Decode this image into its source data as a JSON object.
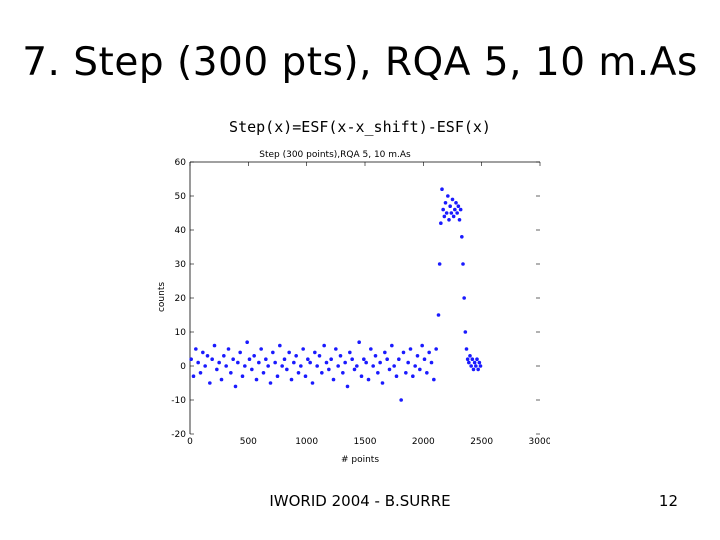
{
  "slide": {
    "title": "7. Step (300 pts), RQA 5, 10 m.As",
    "formula": "Step(x)=ESF(x-x_shift)-ESF(x)",
    "footer": "IWORID 2004 - B.SURRE",
    "page_number": "12"
  },
  "chart_data": {
    "type": "scatter",
    "title": "Step (300 points),RQA 5, 10 m.As",
    "xlabel": "# points",
    "ylabel": "counts",
    "xlim": [
      0,
      3000
    ],
    "ylim": [
      -20,
      60
    ],
    "xticks": [
      0,
      500,
      1000,
      1500,
      2000,
      2500,
      3000
    ],
    "yticks": [
      -20,
      -10,
      0,
      10,
      20,
      30,
      40,
      50,
      60
    ],
    "grid": false,
    "marker_color": "#1a1aff",
    "series": [
      {
        "points": [
          [
            10,
            2
          ],
          [
            30,
            -3
          ],
          [
            50,
            5
          ],
          [
            70,
            1
          ],
          [
            90,
            -2
          ],
          [
            110,
            4
          ],
          [
            130,
            0
          ],
          [
            150,
            3
          ],
          [
            170,
            -5
          ],
          [
            190,
            2
          ],
          [
            210,
            6
          ],
          [
            230,
            -1
          ],
          [
            250,
            1
          ],
          [
            270,
            -4
          ],
          [
            290,
            3
          ],
          [
            310,
            0
          ],
          [
            330,
            5
          ],
          [
            350,
            -2
          ],
          [
            370,
            2
          ],
          [
            390,
            -6
          ],
          [
            410,
            1
          ],
          [
            430,
            4
          ],
          [
            450,
            -3
          ],
          [
            470,
            0
          ],
          [
            490,
            7
          ],
          [
            510,
            2
          ],
          [
            530,
            -1
          ],
          [
            550,
            3
          ],
          [
            570,
            -4
          ],
          [
            590,
            1
          ],
          [
            610,
            5
          ],
          [
            630,
            -2
          ],
          [
            650,
            2
          ],
          [
            670,
            0
          ],
          [
            690,
            -5
          ],
          [
            710,
            4
          ],
          [
            730,
            1
          ],
          [
            750,
            -3
          ],
          [
            770,
            6
          ],
          [
            790,
            0
          ],
          [
            810,
            2
          ],
          [
            830,
            -1
          ],
          [
            850,
            4
          ],
          [
            870,
            -4
          ],
          [
            890,
            1
          ],
          [
            910,
            3
          ],
          [
            930,
            -2
          ],
          [
            950,
            0
          ],
          [
            970,
            5
          ],
          [
            990,
            -3
          ],
          [
            1010,
            2
          ],
          [
            1030,
            1
          ],
          [
            1050,
            -5
          ],
          [
            1070,
            4
          ],
          [
            1090,
            0
          ],
          [
            1110,
            3
          ],
          [
            1130,
            -2
          ],
          [
            1150,
            6
          ],
          [
            1170,
            1
          ],
          [
            1190,
            -1
          ],
          [
            1210,
            2
          ],
          [
            1230,
            -4
          ],
          [
            1250,
            5
          ],
          [
            1270,
            0
          ],
          [
            1290,
            3
          ],
          [
            1310,
            -2
          ],
          [
            1330,
            1
          ],
          [
            1350,
            -6
          ],
          [
            1370,
            4
          ],
          [
            1390,
            2
          ],
          [
            1410,
            -1
          ],
          [
            1430,
            0
          ],
          [
            1450,
            7
          ],
          [
            1470,
            -3
          ],
          [
            1490,
            2
          ],
          [
            1510,
            1
          ],
          [
            1530,
            -4
          ],
          [
            1550,
            5
          ],
          [
            1570,
            0
          ],
          [
            1590,
            3
          ],
          [
            1610,
            -2
          ],
          [
            1630,
            1
          ],
          [
            1650,
            -5
          ],
          [
            1670,
            4
          ],
          [
            1690,
            2
          ],
          [
            1710,
            -1
          ],
          [
            1730,
            6
          ],
          [
            1750,
            0
          ],
          [
            1770,
            -3
          ],
          [
            1790,
            2
          ],
          [
            1810,
            -10
          ],
          [
            1830,
            4
          ],
          [
            1850,
            -2
          ],
          [
            1870,
            1
          ],
          [
            1890,
            5
          ],
          [
            1910,
            -3
          ],
          [
            1930,
            0
          ],
          [
            1950,
            3
          ],
          [
            1970,
            -1
          ],
          [
            1990,
            6
          ],
          [
            2010,
            2
          ],
          [
            2030,
            -2
          ],
          [
            2050,
            4
          ],
          [
            2070,
            1
          ],
          [
            2090,
            -4
          ],
          [
            2110,
            5
          ],
          [
            2130,
            15
          ],
          [
            2140,
            30
          ],
          [
            2150,
            42
          ],
          [
            2160,
            52
          ],
          [
            2170,
            46
          ],
          [
            2180,
            44
          ],
          [
            2190,
            48
          ],
          [
            2200,
            45
          ],
          [
            2210,
            50
          ],
          [
            2220,
            43
          ],
          [
            2230,
            47
          ],
          [
            2240,
            45
          ],
          [
            2250,
            49
          ],
          [
            2260,
            44
          ],
          [
            2270,
            46
          ],
          [
            2280,
            48
          ],
          [
            2290,
            45
          ],
          [
            2300,
            47
          ],
          [
            2310,
            43
          ],
          [
            2320,
            46
          ],
          [
            2330,
            38
          ],
          [
            2340,
            30
          ],
          [
            2350,
            20
          ],
          [
            2360,
            10
          ],
          [
            2370,
            5
          ],
          [
            2380,
            2
          ],
          [
            2390,
            1
          ],
          [
            2400,
            3
          ],
          [
            2410,
            0
          ],
          [
            2420,
            2
          ],
          [
            2430,
            -1
          ],
          [
            2440,
            1
          ],
          [
            2450,
            0
          ],
          [
            2460,
            2
          ],
          [
            2470,
            -1
          ],
          [
            2480,
            1
          ],
          [
            2490,
            0
          ]
        ]
      }
    ]
  }
}
